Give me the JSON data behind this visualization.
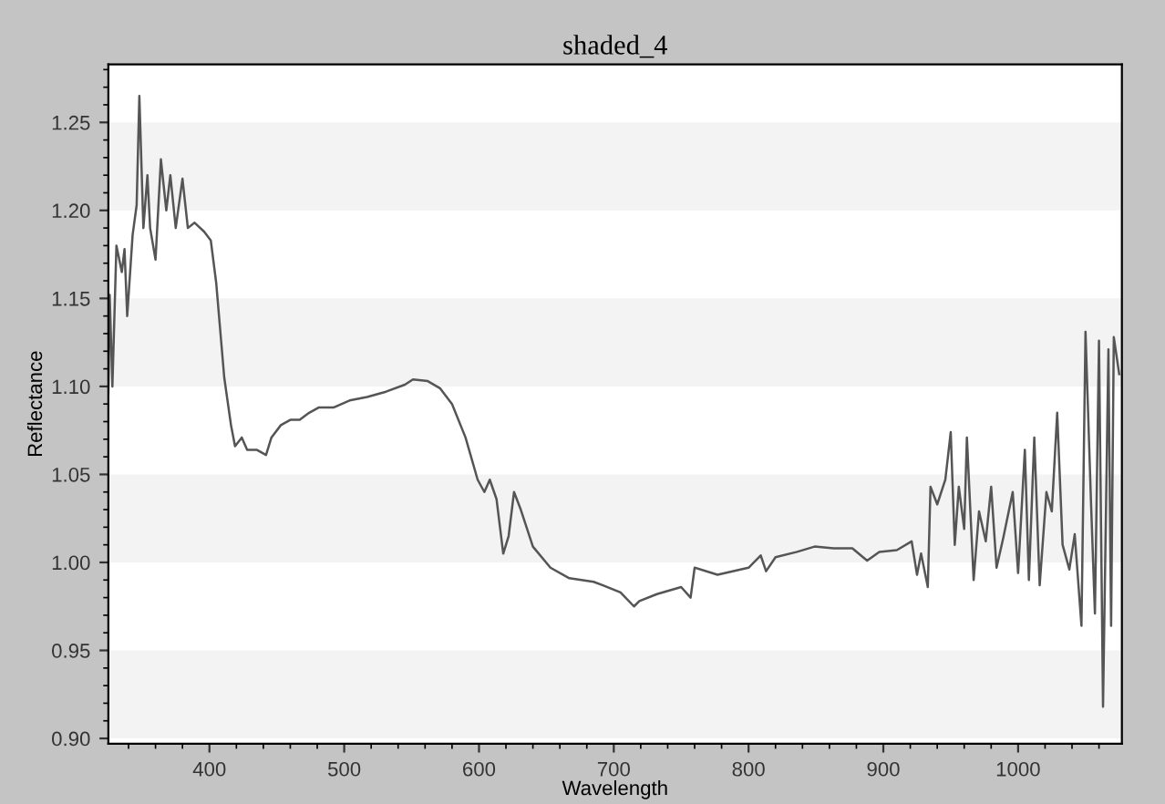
{
  "chart_data": {
    "type": "line",
    "title": "shaded_4",
    "xlabel": "Wavelength",
    "ylabel": "Reflectance",
    "xlim": [
      325,
      1077
    ],
    "ylim": [
      0.897,
      1.283
    ],
    "xticks": [
      400,
      500,
      600,
      700,
      800,
      900,
      1000
    ],
    "yticks": [
      {
        "value": 0.9,
        "label": "0.90"
      },
      {
        "value": 0.95,
        "label": "0.95"
      },
      {
        "value": 1.0,
        "label": "1.00"
      },
      {
        "value": 1.05,
        "label": "1.05"
      },
      {
        "value": 1.1,
        "label": "1.10"
      },
      {
        "value": 1.15,
        "label": "1.15"
      },
      {
        "value": 1.2,
        "label": "1.20"
      },
      {
        "value": 1.25,
        "label": "1.25"
      }
    ],
    "grid": false,
    "legend": false,
    "marker": "none",
    "line_style": "solid",
    "bands": [
      {
        "axis": "y",
        "from": 0.9,
        "to": 0.95,
        "color": "#f3f3f3"
      },
      {
        "axis": "y",
        "from": 1.0,
        "to": 1.05,
        "color": "#f3f3f3"
      },
      {
        "axis": "y",
        "from": 1.1,
        "to": 1.15,
        "color": "#f3f3f3"
      },
      {
        "axis": "y",
        "from": 1.2,
        "to": 1.25,
        "color": "#f3f3f3"
      }
    ],
    "series": [
      {
        "color": "#555555",
        "x": [
          325,
          326,
          328,
          331,
          335,
          337,
          339,
          343,
          346,
          348,
          351,
          354,
          356,
          360,
          364,
          368,
          371,
          375,
          380,
          384,
          389,
          396,
          401,
          405,
          411,
          416,
          419,
          424,
          428,
          435,
          442,
          446,
          453,
          460,
          467,
          474,
          481,
          492,
          504,
          517,
          531,
          545,
          551,
          562,
          571,
          580,
          590,
          599,
          604,
          608,
          613,
          618,
          622,
          626,
          631,
          640,
          653,
          667,
          685,
          692,
          705,
          715,
          719,
          732,
          750,
          757,
          760,
          777,
          800,
          809,
          813,
          820,
          836,
          849,
          863,
          877,
          888,
          897,
          910,
          921,
          925,
          928,
          933,
          935,
          940,
          946,
          950,
          953,
          956,
          960,
          962,
          967,
          971,
          976,
          980,
          984,
          989,
          996,
          1000,
          1005,
          1008,
          1012,
          1016,
          1021,
          1025,
          1029,
          1033,
          1038,
          1042,
          1047,
          1050,
          1054,
          1057,
          1060,
          1063,
          1067,
          1069,
          1071,
          1075
        ],
        "values": [
          1.096,
          1.152,
          1.1,
          1.18,
          1.165,
          1.178,
          1.14,
          1.186,
          1.203,
          1.265,
          1.19,
          1.22,
          1.19,
          1.172,
          1.229,
          1.2,
          1.22,
          1.19,
          1.218,
          1.19,
          1.193,
          1.188,
          1.183,
          1.159,
          1.105,
          1.078,
          1.066,
          1.071,
          1.064,
          1.064,
          1.061,
          1.071,
          1.078,
          1.081,
          1.081,
          1.085,
          1.088,
          1.088,
          1.092,
          1.094,
          1.097,
          1.101,
          1.104,
          1.103,
          1.099,
          1.09,
          1.071,
          1.047,
          1.04,
          1.047,
          1.036,
          1.005,
          1.015,
          1.04,
          1.03,
          1.009,
          0.997,
          0.991,
          0.989,
          0.987,
          0.983,
          0.975,
          0.978,
          0.982,
          0.986,
          0.98,
          0.997,
          0.993,
          0.997,
          1.004,
          0.995,
          1.003,
          1.006,
          1.009,
          1.008,
          1.008,
          1.001,
          1.006,
          1.007,
          1.012,
          0.993,
          1.005,
          0.986,
          1.043,
          1.033,
          1.047,
          1.074,
          1.01,
          1.043,
          1.019,
          1.071,
          0.99,
          1.029,
          1.012,
          1.043,
          0.997,
          1.014,
          1.04,
          0.994,
          1.064,
          0.99,
          1.071,
          0.987,
          1.04,
          1.029,
          1.085,
          1.01,
          0.996,
          1.016,
          0.964,
          1.131,
          1.036,
          0.971,
          1.126,
          0.918,
          1.121,
          0.964,
          1.128,
          1.107
        ]
      }
    ]
  }
}
